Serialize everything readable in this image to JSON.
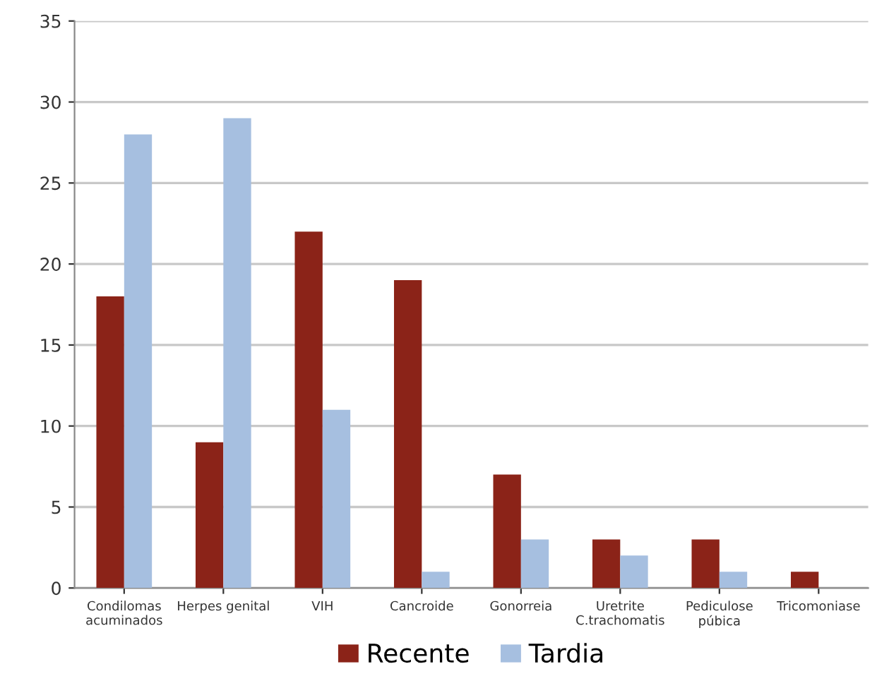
{
  "chart_data": {
    "type": "bar",
    "categories": [
      "Condilomas\nacuminados",
      "Herpes genital",
      "VIH",
      "Cancroide",
      "Gonorreia",
      "Uretrite\nC.trachomatis",
      "Pediculose\npúbica",
      "Tricomoniase"
    ],
    "series": [
      {
        "name": "Recente",
        "color": "#8b2318",
        "values": [
          18,
          9,
          22,
          19,
          7,
          3,
          3,
          1
        ]
      },
      {
        "name": "Tardia",
        "color": "#a6bfe0",
        "values": [
          28,
          29,
          11,
          1,
          3,
          2,
          1,
          0
        ]
      }
    ],
    "ylim": [
      0,
      35
    ],
    "yticks": [
      0,
      5,
      10,
      15,
      20,
      25,
      30,
      35
    ],
    "grid": "y",
    "legend": "bottom"
  }
}
